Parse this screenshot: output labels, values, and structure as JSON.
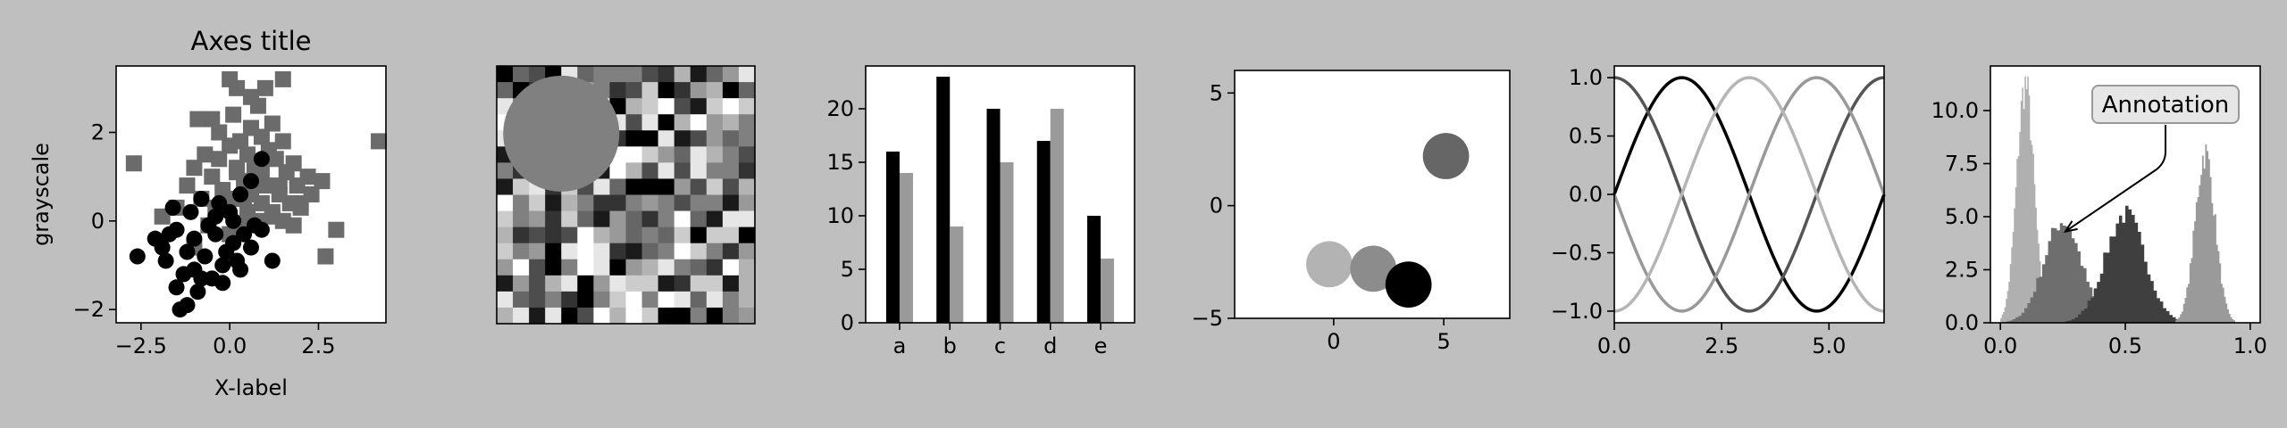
{
  "figure": {
    "background": "#bfbfbf"
  },
  "chart_data": [
    {
      "type": "scatter",
      "title": "Axes title",
      "xlabel": "X-label",
      "ylabel": "grayscale",
      "xlim": [
        -3.2,
        4.4
      ],
      "ylim": [
        -2.3,
        3.5
      ],
      "xticks": [
        {
          "v": -2.5,
          "label": "−2.5"
        },
        {
          "v": 0.0,
          "label": "0.0"
        },
        {
          "v": 2.5,
          "label": "2.5"
        }
      ],
      "yticks": [
        {
          "v": -2,
          "label": "−2"
        },
        {
          "v": 0,
          "label": "0"
        },
        {
          "v": 2,
          "label": "2"
        }
      ],
      "series": [
        {
          "marker": "square",
          "color": "#6b6b6b",
          "points": [
            [
              0.0,
              3.2
            ],
            [
              0.2,
              3.0
            ],
            [
              1.0,
              3.0
            ],
            [
              1.5,
              3.2
            ],
            [
              0.8,
              2.6
            ],
            [
              0.1,
              2.4
            ],
            [
              -0.5,
              2.3
            ],
            [
              0.6,
              2.1
            ],
            [
              1.2,
              2.2
            ],
            [
              -0.3,
              2.0
            ],
            [
              0.3,
              1.8
            ],
            [
              0.9,
              1.9
            ],
            [
              1.5,
              1.8
            ],
            [
              0.0,
              1.7
            ],
            [
              0.5,
              1.5
            ],
            [
              1.1,
              1.6
            ],
            [
              -0.7,
              1.5
            ],
            [
              -0.3,
              1.4
            ],
            [
              0.7,
              1.3
            ],
            [
              1.3,
              1.4
            ],
            [
              1.8,
              1.3
            ],
            [
              -1.0,
              1.2
            ],
            [
              0.2,
              1.2
            ],
            [
              0.9,
              1.1
            ],
            [
              1.6,
              1.1
            ],
            [
              2.2,
              1.0
            ],
            [
              -0.5,
              1.0
            ],
            [
              0.4,
              0.9
            ],
            [
              1.0,
              0.8
            ],
            [
              1.9,
              0.8
            ],
            [
              2.6,
              0.9
            ],
            [
              -1.2,
              0.8
            ],
            [
              -0.2,
              0.7
            ],
            [
              0.6,
              0.6
            ],
            [
              1.4,
              0.6
            ],
            [
              2.3,
              0.6
            ],
            [
              -0.8,
              0.5
            ],
            [
              0.1,
              0.5
            ],
            [
              0.9,
              0.4
            ],
            [
              1.7,
              0.4
            ],
            [
              -1.5,
              0.3
            ],
            [
              -0.4,
              0.3
            ],
            [
              0.5,
              0.2
            ],
            [
              1.2,
              0.2
            ],
            [
              2.0,
              0.3
            ],
            [
              -2.7,
              1.3
            ],
            [
              4.2,
              1.8
            ],
            [
              3.0,
              -0.2
            ],
            [
              2.7,
              -0.8
            ],
            [
              -1.9,
              0.1
            ],
            [
              0.3,
              -0.1
            ],
            [
              0.8,
              0.0
            ],
            [
              1.5,
              0.0
            ],
            [
              -0.6,
              -0.1
            ],
            [
              0.0,
              -0.3
            ],
            [
              -1.0,
              -0.6
            ],
            [
              0.7,
              1.2
            ],
            [
              1.2,
              0.1
            ],
            [
              0.4,
              0.5
            ],
            [
              1.8,
              -0.1
            ],
            [
              0.2,
              1.1
            ],
            [
              2.0,
              0.4
            ],
            [
              -0.9,
              2.3
            ],
            [
              0.6,
              2.8
            ],
            [
              1.4,
              0.8
            ]
          ]
        },
        {
          "marker": "circle",
          "color": "#000000",
          "points": [
            [
              -2.6,
              -0.8
            ],
            [
              -2.1,
              -0.4
            ],
            [
              -1.8,
              -0.9
            ],
            [
              -1.5,
              -0.2
            ],
            [
              -1.3,
              -1.2
            ],
            [
              -1.0,
              -0.4
            ],
            [
              -0.7,
              -0.8
            ],
            [
              -0.4,
              -0.3
            ],
            [
              -0.2,
              -1.0
            ],
            [
              0.1,
              -0.5
            ],
            [
              0.3,
              -1.1
            ],
            [
              0.6,
              -0.6
            ],
            [
              0.9,
              -0.2
            ],
            [
              1.2,
              -0.9
            ],
            [
              -1.1,
              0.2
            ],
            [
              -0.8,
              0.5
            ],
            [
              -0.4,
              0.1
            ],
            [
              0.0,
              0.2
            ],
            [
              0.3,
              0.6
            ],
            [
              0.6,
              0.9
            ],
            [
              0.9,
              1.4
            ],
            [
              -1.5,
              -1.5
            ],
            [
              -1.2,
              -1.9
            ],
            [
              -0.9,
              -1.6
            ],
            [
              -1.4,
              -2.0
            ],
            [
              -0.2,
              -1.4
            ],
            [
              -1.6,
              0.3
            ],
            [
              -1.9,
              -0.6
            ],
            [
              -0.6,
              -0.1
            ],
            [
              -0.1,
              -0.7
            ],
            [
              0.4,
              -0.3
            ],
            [
              -1.0,
              -1.1
            ],
            [
              -0.3,
              0.4
            ],
            [
              0.2,
              -0.9
            ],
            [
              -1.7,
              -0.3
            ],
            [
              -0.5,
              -1.3
            ],
            [
              0.7,
              -0.1
            ],
            [
              -1.2,
              -0.7
            ],
            [
              -0.8,
              -1.3
            ],
            [
              0.1,
              0.0
            ]
          ]
        }
      ]
    },
    {
      "type": "heatmap",
      "rows": 16,
      "cols": 16,
      "seed": 11,
      "levels": [
        "#000000",
        "#1a1a1a",
        "#333333",
        "#4d4d4d",
        "#666666",
        "#808080",
        "#999999",
        "#b3b3b3",
        "#cccccc",
        "#e6e6e6",
        "#ffffff"
      ],
      "overlay_circle": {
        "cx": 4,
        "cy": 4.2,
        "r": 4.0,
        "color": "#808080"
      }
    },
    {
      "type": "bar",
      "categories": [
        "a",
        "b",
        "c",
        "d",
        "e"
      ],
      "series": [
        {
          "color": "#000000",
          "values": [
            16,
            23,
            20,
            17,
            10
          ]
        },
        {
          "color": "#9a9a9a",
          "values": [
            14,
            9,
            15,
            20,
            6
          ]
        }
      ],
      "ylim": [
        0,
        24
      ],
      "yticks": [
        0,
        5,
        10,
        15,
        20
      ]
    },
    {
      "type": "scatter",
      "xlim": [
        -4.5,
        8
      ],
      "ylim": [
        -5,
        6
      ],
      "xticks": [
        {
          "v": 0,
          "label": "0"
        },
        {
          "v": 5,
          "label": "5"
        }
      ],
      "yticks": [
        {
          "v": -5,
          "label": "−5"
        },
        {
          "v": 0,
          "label": "0"
        },
        {
          "v": 5,
          "label": "5"
        }
      ],
      "circles": [
        {
          "x": 5.1,
          "y": 2.2,
          "color": "#666666"
        },
        {
          "x": -0.2,
          "y": -2.6,
          "color": "#b3b3b3"
        },
        {
          "x": 1.8,
          "y": -2.8,
          "color": "#8c8c8c"
        },
        {
          "x": 3.4,
          "y": -3.5,
          "color": "#000000"
        }
      ]
    },
    {
      "type": "line",
      "xlim": [
        0,
        6.2832
      ],
      "ylim": [
        -1.1,
        1.1
      ],
      "xticks": [
        {
          "v": 0,
          "label": "0.0"
        },
        {
          "v": 2.5,
          "label": "2.5"
        },
        {
          "v": 5.0,
          "label": "5.0"
        }
      ],
      "yticks": [
        {
          "v": -1.0,
          "label": "−1.0"
        },
        {
          "v": -0.5,
          "label": "−0.5"
        },
        {
          "v": 0.0,
          "label": "0.0"
        },
        {
          "v": 0.5,
          "label": "0.5"
        },
        {
          "v": 1.0,
          "label": "1.0"
        }
      ],
      "series": [
        {
          "fn": "sin",
          "phase": 0.0,
          "color": "#000000"
        },
        {
          "fn": "sin",
          "phase": 1.5708,
          "color": "#555555"
        },
        {
          "fn": "sin",
          "phase": 3.1416,
          "color": "#999999"
        },
        {
          "fn": "sin",
          "phase": 4.7124,
          "color": "#b5b5b5"
        }
      ]
    },
    {
      "type": "area",
      "xlim": [
        -0.04,
        1.04
      ],
      "ylim": [
        0,
        12.1
      ],
      "xticks": [
        {
          "v": 0.0,
          "label": "0.0"
        },
        {
          "v": 0.5,
          "label": "0.5"
        },
        {
          "v": 1.0,
          "label": "1.0"
        }
      ],
      "yticks": [
        {
          "v": 0.0,
          "label": "0.0"
        },
        {
          "v": 2.5,
          "label": "2.5"
        },
        {
          "v": 5.0,
          "label": "5.0"
        },
        {
          "v": 7.5,
          "label": "7.5"
        },
        {
          "v": 10.0,
          "label": "10.0"
        }
      ],
      "series": [
        {
          "color": "#b0b0b0",
          "mu": 0.1,
          "sigma": 0.035,
          "peak": 11.2
        },
        {
          "color": "#6e6e6e",
          "mu": 0.25,
          "sigma": 0.075,
          "peak": 4.8
        },
        {
          "color": "#3f3f3f",
          "mu": 0.5,
          "sigma": 0.08,
          "peak": 5.1
        },
        {
          "color": "#9a9a9a",
          "mu": 0.82,
          "sigma": 0.04,
          "peak": 8.0
        }
      ],
      "annotation": {
        "text": "Annotation",
        "x": 0.26,
        "y": 4.3
      }
    }
  ]
}
